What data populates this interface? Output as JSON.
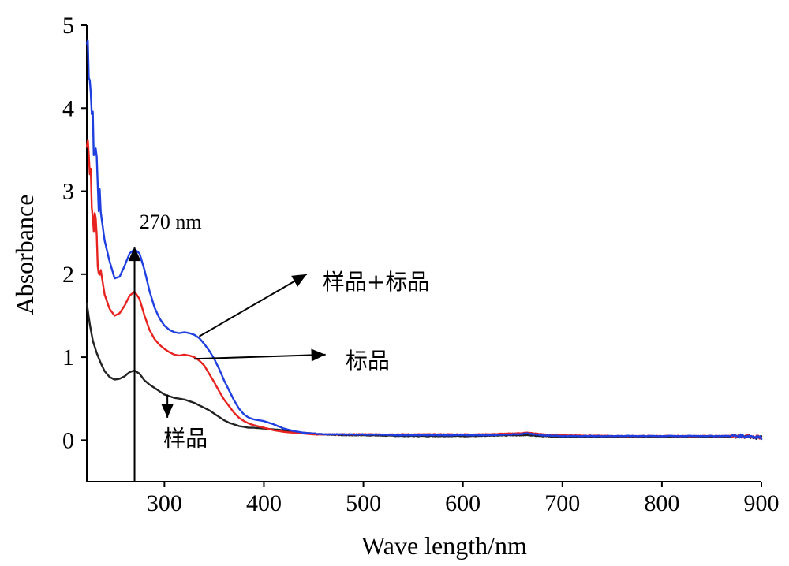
{
  "chart_data": {
    "type": "line",
    "xlabel": "Wave length/nm",
    "ylabel": "Absorbance",
    "xlim": [
      222,
      900
    ],
    "ylim": [
      -0.5,
      5
    ],
    "xticks": [
      300,
      400,
      500,
      600,
      700,
      800,
      900
    ],
    "yticks": [
      0,
      1,
      2,
      3,
      4,
      5
    ],
    "grid": false,
    "series": [
      {
        "name": "样品+标品",
        "color": "#1f3fe0",
        "x": [
          222,
          225,
          228,
          232,
          236,
          240,
          245,
          250,
          255,
          260,
          265,
          270,
          275,
          280,
          285,
          290,
          295,
          300,
          305,
          310,
          315,
          320,
          325,
          330,
          335,
          340,
          345,
          350,
          355,
          360,
          365,
          370,
          375,
          380,
          385,
          390,
          400,
          410,
          420,
          430,
          440,
          450,
          460,
          480,
          500,
          540,
          580,
          620,
          650,
          665,
          680,
          700,
          750,
          800,
          850,
          880,
          890,
          900
        ],
        "y": [
          5.0,
          4.2,
          3.75,
          3.2,
          2.75,
          2.4,
          2.15,
          1.95,
          1.97,
          2.1,
          2.25,
          2.3,
          2.25,
          2.05,
          1.8,
          1.6,
          1.47,
          1.38,
          1.33,
          1.3,
          1.29,
          1.3,
          1.29,
          1.27,
          1.23,
          1.16,
          1.08,
          0.98,
          0.86,
          0.72,
          0.6,
          0.48,
          0.38,
          0.31,
          0.27,
          0.25,
          0.23,
          0.19,
          0.14,
          0.11,
          0.09,
          0.08,
          0.07,
          0.07,
          0.07,
          0.06,
          0.06,
          0.06,
          0.07,
          0.08,
          0.06,
          0.05,
          0.05,
          0.05,
          0.05,
          0.05,
          0.05,
          0.03
        ]
      },
      {
        "name": "标品",
        "color": "#e8231f",
        "x": [
          222,
          225,
          228,
          232,
          236,
          240,
          245,
          250,
          255,
          260,
          265,
          270,
          275,
          280,
          285,
          290,
          295,
          300,
          305,
          310,
          315,
          320,
          325,
          330,
          335,
          340,
          345,
          350,
          355,
          360,
          365,
          370,
          375,
          380,
          385,
          390,
          400,
          410,
          420,
          430,
          440,
          450,
          460,
          480,
          500,
          540,
          580,
          620,
          650,
          665,
          680,
          700,
          750,
          800,
          850,
          880,
          890,
          900
        ],
        "y": [
          3.65,
          3.25,
          2.85,
          2.4,
          2.05,
          1.75,
          1.58,
          1.5,
          1.53,
          1.62,
          1.74,
          1.79,
          1.7,
          1.5,
          1.33,
          1.22,
          1.15,
          1.1,
          1.06,
          1.03,
          1.02,
          1.03,
          1.02,
          1.0,
          0.96,
          0.9,
          0.8,
          0.7,
          0.59,
          0.49,
          0.41,
          0.33,
          0.27,
          0.23,
          0.2,
          0.18,
          0.15,
          0.12,
          0.1,
          0.09,
          0.08,
          0.07,
          0.07,
          0.07,
          0.07,
          0.07,
          0.07,
          0.07,
          0.08,
          0.09,
          0.07,
          0.06,
          0.05,
          0.05,
          0.05,
          0.05,
          0.05,
          0.03
        ]
      },
      {
        "name": "样品",
        "color": "#222222",
        "x": [
          222,
          225,
          228,
          232,
          236,
          240,
          245,
          250,
          255,
          260,
          265,
          270,
          275,
          280,
          285,
          290,
          295,
          300,
          305,
          310,
          315,
          320,
          325,
          330,
          335,
          340,
          345,
          350,
          355,
          360,
          365,
          370,
          375,
          380,
          385,
          390,
          400,
          410,
          420,
          430,
          440,
          450,
          460,
          480,
          500,
          540,
          580,
          620,
          650,
          665,
          680,
          700,
          750,
          800,
          850,
          880,
          890,
          900
        ],
        "y": [
          1.65,
          1.4,
          1.2,
          1.05,
          0.93,
          0.83,
          0.76,
          0.73,
          0.74,
          0.77,
          0.82,
          0.84,
          0.8,
          0.72,
          0.67,
          0.63,
          0.59,
          0.55,
          0.53,
          0.51,
          0.5,
          0.49,
          0.47,
          0.45,
          0.42,
          0.39,
          0.36,
          0.32,
          0.28,
          0.24,
          0.21,
          0.19,
          0.17,
          0.16,
          0.15,
          0.15,
          0.14,
          0.13,
          0.12,
          0.1,
          0.09,
          0.08,
          0.07,
          0.06,
          0.06,
          0.05,
          0.05,
          0.05,
          0.06,
          0.06,
          0.05,
          0.04,
          0.04,
          0.04,
          0.04,
          0.04,
          0.04,
          0.03
        ]
      }
    ],
    "annotations": [
      {
        "text": "270 nm",
        "x": 270,
        "y": 2.55
      },
      {
        "text": "样品+标品",
        "x": 440,
        "y": 1.95
      },
      {
        "text": "标品",
        "x": 460,
        "y": 0.88
      },
      {
        "text": "样品",
        "x": 325,
        "y": -0.05
      }
    ]
  }
}
